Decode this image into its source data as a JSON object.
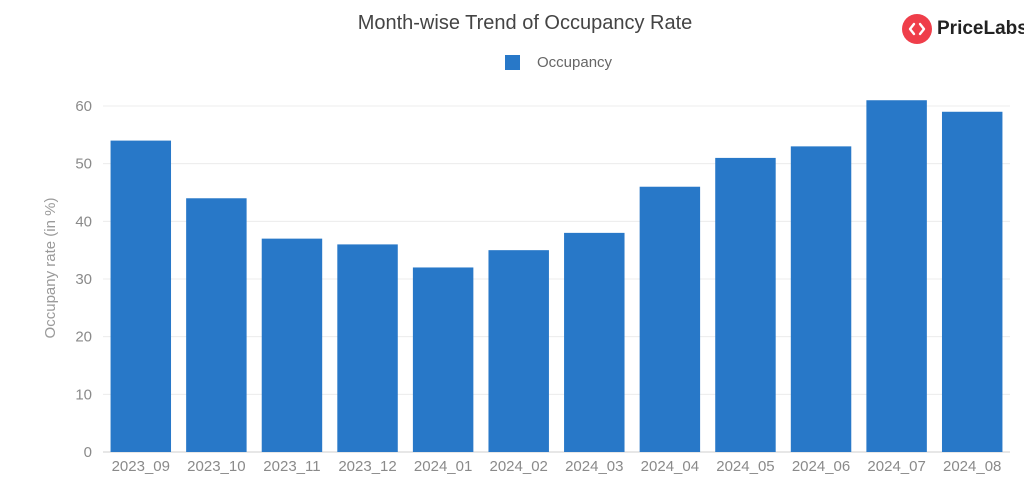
{
  "brand": {
    "logo_text": "PriceLabs",
    "logo_color": "#ef3e4a"
  },
  "chart_data": {
    "type": "bar",
    "title": "Month-wise Trend of Occupancy Rate",
    "xlabel": "",
    "ylabel": "Occupany rate (in %)",
    "categories": [
      "2023_09",
      "2023_10",
      "2023_11",
      "2023_12",
      "2024_01",
      "2024_02",
      "2024_03",
      "2024_04",
      "2024_05",
      "2024_06",
      "2024_07",
      "2024_08"
    ],
    "series": [
      {
        "name": "Occupancy",
        "color": "#2878c8",
        "values": [
          54,
          44,
          37,
          36,
          32,
          35,
          38,
          46,
          51,
          53,
          61,
          59
        ]
      }
    ],
    "ylim": [
      0,
      60
    ],
    "yticks": [
      0,
      10,
      20,
      30,
      40,
      50,
      60
    ],
    "grid": true,
    "legend": "top-center"
  }
}
